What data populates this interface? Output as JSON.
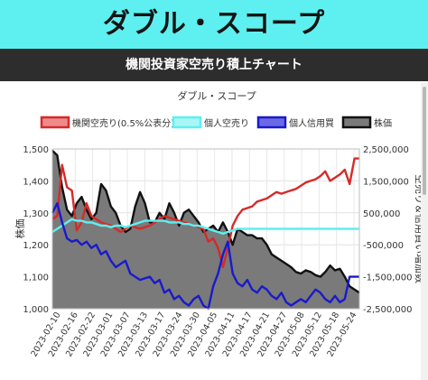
{
  "header": {
    "title": "ダブル・スコープ",
    "subtitle": "機関投資家空売り積上チャート"
  },
  "chart_data": {
    "type": "line",
    "title": "ダブル・スコープ",
    "ylabel_left": "株価",
    "ylabel_right": "空売り＆信用買い増加数",
    "ylim_left": [
      1000,
      1500
    ],
    "ylim_right": [
      -2500000,
      2500000
    ],
    "yticks_left": [
      "1,500",
      "1,400",
      "1,300",
      "1,200",
      "1,100",
      "1,000"
    ],
    "yticks_right": [
      "2,500,000",
      "1,500,000",
      "500,000",
      "-500,000",
      "-1,500,000",
      "-2,500,000"
    ],
    "x_ticks": [
      "2023-02-10",
      "2023-02-16",
      "2023-02-22",
      "2023-03-01",
      "2023-03-07",
      "2023-03-13",
      "2023-03-17",
      "2023-03-24",
      "2023-03-30",
      "2023-04-05",
      "2023-04-11",
      "2023-04-17",
      "2023-04-21",
      "2023-04-27",
      "2023-05-08",
      "2023-05-12",
      "2023-05-18",
      "2023-05-24"
    ],
    "grid": true,
    "legend_position": "top",
    "series": [
      {
        "name": "機関空売り(0.5%公表分)",
        "axis": "right",
        "style": "line",
        "color": "#d62a2a",
        "fill": "#f08a8a",
        "values": [
          300000,
          400000,
          2000000,
          1300000,
          1200000,
          -50000,
          200000,
          800000,
          400000,
          300000,
          200000,
          150000,
          100000,
          0,
          -100000,
          0,
          100000,
          50000,
          0,
          50000,
          100000,
          200000,
          300000,
          400000,
          350000,
          300000,
          250000,
          200000,
          150000,
          100000,
          50000,
          0,
          -400000,
          -300000,
          -600000,
          -1200000,
          -600000,
          100000,
          400000,
          600000,
          650000,
          700000,
          850000,
          900000,
          950000,
          1050000,
          1150000,
          1100000,
          1150000,
          1200000,
          1250000,
          1350000,
          1450000,
          1500000,
          1550000,
          1650000,
          1800000,
          1500000,
          1600000,
          1700000,
          1850000,
          1400000,
          2200000,
          2200000
        ]
      },
      {
        "name": "個人空売り",
        "axis": "right",
        "style": "line",
        "color": "#5ef0f0",
        "fill": "#a8f6f6",
        "values": [
          -100000,
          0,
          100000,
          200000,
          300000,
          250000,
          250000,
          200000,
          200000,
          150000,
          100000,
          100000,
          50000,
          100000,
          100000,
          50000,
          100000,
          150000,
          200000,
          250000,
          250000,
          250000,
          250000,
          250000,
          200000,
          200000,
          200000,
          150000,
          150000,
          100000,
          100000,
          50000,
          0,
          -50000,
          -100000,
          -150000,
          -100000,
          -50000,
          0,
          0,
          0,
          0,
          0,
          0,
          0,
          0,
          0,
          0,
          0,
          0,
          0,
          0,
          0,
          0,
          0,
          0,
          0,
          0,
          0,
          0,
          0,
          0,
          0,
          0
        ]
      },
      {
        "name": "個人信用買",
        "axis": "right",
        "style": "line",
        "color": "#1a1acc",
        "fill": "#6a6ae6",
        "values": [
          500000,
          800000,
          200000,
          -300000,
          -400000,
          -350000,
          -500000,
          -400000,
          -600000,
          -500000,
          -800000,
          -700000,
          -1000000,
          -1200000,
          -1100000,
          -1000000,
          -1400000,
          -1500000,
          -1600000,
          -1550000,
          -1500000,
          -1700000,
          -1600000,
          -2000000,
          -1900000,
          -2200000,
          -2100000,
          -2300000,
          -2400000,
          -2200000,
          -2100000,
          -2400000,
          -2500000,
          -1800000,
          -1400000,
          -800000,
          -400000,
          -1400000,
          -1700000,
          -1800000,
          -1600000,
          -1900000,
          -2000000,
          -1800000,
          -1900000,
          -2100000,
          -2200000,
          -2000000,
          -2300000,
          -2400000,
          -2300000,
          -2200000,
          -2300000,
          -2100000,
          -1900000,
          -2000000,
          -2200000,
          -2300000,
          -2100000,
          -2300000,
          -2200000,
          -1500000,
          -1500000,
          -1500000
        ]
      },
      {
        "name": "株価",
        "axis": "left",
        "style": "area",
        "color": "#111111",
        "fill": "#7a7a7a",
        "values": [
          1495,
          1480,
          1380,
          1310,
          1290,
          1330,
          1350,
          1310,
          1280,
          1300,
          1390,
          1370,
          1320,
          1300,
          1260,
          1240,
          1250,
          1320,
          1365,
          1330,
          1270,
          1270,
          1300,
          1280,
          1330,
          1300,
          1260,
          1300,
          1310,
          1290,
          1270,
          1240,
          1250,
          1260,
          1240,
          1270,
          1240,
          1200,
          1250,
          1240,
          1230,
          1230,
          1220,
          1220,
          1200,
          1170,
          1160,
          1150,
          1140,
          1130,
          1115,
          1110,
          1120,
          1115,
          1105,
          1100,
          1115,
          1135,
          1120,
          1125,
          1100,
          1070,
          1060,
          1050
        ]
      }
    ]
  }
}
